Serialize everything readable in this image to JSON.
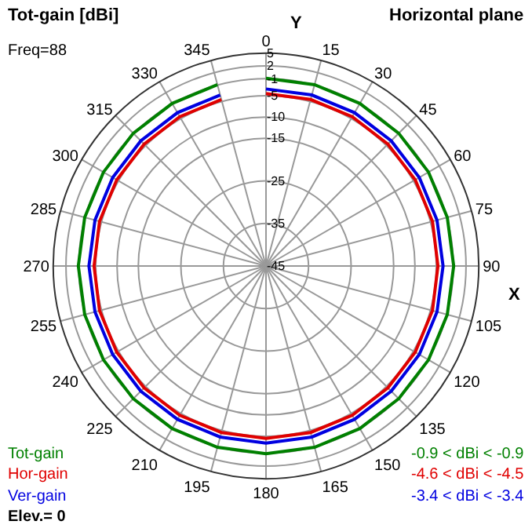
{
  "chart_data": {
    "type": "radar",
    "title": "Tot-gain [dBi]",
    "subtitle": "Horizontal plane",
    "xlabel": "X",
    "ylabel": "Y",
    "categories": [
      "0",
      "15",
      "30",
      "45",
      "60",
      "75",
      "90",
      "105",
      "120",
      "135",
      "150",
      "165",
      "180",
      "195",
      "210",
      "225",
      "240",
      "255",
      "270",
      "285",
      "300",
      "315",
      "330",
      "345"
    ],
    "series": [
      {
        "name": "Tot-gain",
        "color": "#008000",
        "values": [
          -0.9,
          -0.9,
          -0.9,
          -0.9,
          -0.9,
          -0.9,
          -0.9,
          -0.9,
          -0.9,
          -0.9,
          -0.9,
          -0.9,
          -0.9,
          -0.9,
          -0.9,
          -0.9,
          -0.9,
          -0.9,
          -0.9,
          -0.9,
          -0.9,
          -0.9,
          -0.9,
          -0.9
        ]
      },
      {
        "name": "Hor-gain",
        "color": "#e00000",
        "values": [
          -4.5,
          -4.5,
          -4.5,
          -4.5,
          -4.5,
          -4.5,
          -4.6,
          -4.5,
          -4.5,
          -4.5,
          -4.5,
          -4.5,
          -4.5,
          -4.5,
          -4.5,
          -4.5,
          -4.5,
          -4.5,
          -4.6,
          -4.5,
          -4.5,
          -4.5,
          -4.5,
          -4.5
        ]
      },
      {
        "name": "Ver-gain",
        "color": "#0000e0",
        "values": [
          -3.4,
          -3.4,
          -3.4,
          -3.4,
          -3.4,
          -3.4,
          -3.4,
          -3.4,
          -3.4,
          -3.4,
          -3.4,
          -3.4,
          -3.4,
          -3.4,
          -3.4,
          -3.4,
          -3.4,
          -3.4,
          -3.4,
          -3.4,
          -3.4,
          -3.4,
          -3.4,
          -3.4
        ]
      }
    ],
    "ylim": [
      -45,
      5
    ],
    "yticks": [
      5,
      2,
      -1,
      -5,
      -10,
      -15,
      -25,
      -35,
      -45
    ],
    "grid": true,
    "marker": "none",
    "line_style": "solid",
    "legend": "bottom left",
    "annotations": [
      "Freq=88",
      "Elev.= 0",
      "-0.9 < dBi < -0.9",
      "-4.6 < dBi < -4.5",
      "-3.4 < dBi < -3.4"
    ]
  }
}
